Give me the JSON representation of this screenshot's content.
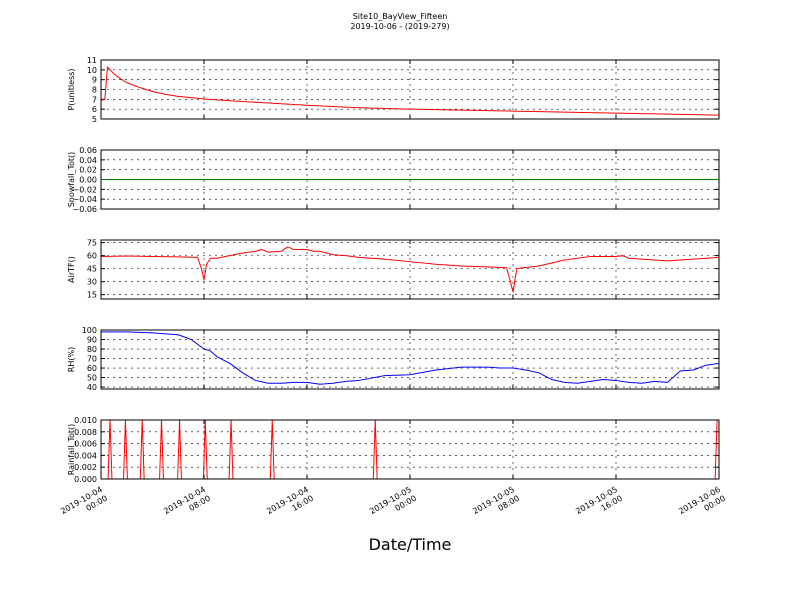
{
  "header": {
    "title": "Site10_BayView_Fifteen",
    "subtitle": "2019-10-06 - (2019-279)"
  },
  "chart_data": {
    "type": "line",
    "xlabel": "Date/Time",
    "x_range": [
      "2019-10-04 00:00",
      "2019-10-06 00:00"
    ],
    "x_ticks": [
      {
        "x_hours": 0,
        "line1": "2019-10-04",
        "line2": "00:00"
      },
      {
        "x_hours": 8,
        "line1": "2019-10-04",
        "line2": "08:00"
      },
      {
        "x_hours": 16,
        "line1": "2019-10-04",
        "line2": "16:00"
      },
      {
        "x_hours": 24,
        "line1": "2019-10-05",
        "line2": "00:00"
      },
      {
        "x_hours": 32,
        "line1": "2019-10-05",
        "line2": "08:00"
      },
      {
        "x_hours": 40,
        "line1": "2019-10-05",
        "line2": "16:00"
      },
      {
        "x_hours": 48,
        "line1": "2019-10-06",
        "line2": "00:00"
      }
    ],
    "grid": true,
    "panels": [
      {
        "ylabel": "P(unitless)",
        "ylim": [
          5,
          11
        ],
        "yticks": [
          "5",
          "6",
          "7",
          "8",
          "9",
          "10",
          "11"
        ],
        "color": "#ff0000",
        "series": {
          "x_hours": [
            0,
            0.3,
            0.5,
            1,
            1.5,
            2,
            3,
            4,
            5,
            6,
            8,
            10,
            12,
            16,
            20,
            24,
            28,
            32,
            36,
            40,
            44,
            48
          ],
          "values": [
            6.9,
            7.0,
            10.3,
            9.6,
            9.1,
            8.7,
            8.2,
            7.8,
            7.5,
            7.3,
            7.05,
            6.85,
            6.7,
            6.4,
            6.15,
            6.0,
            5.9,
            5.8,
            5.7,
            5.6,
            5.5,
            5.4
          ]
        }
      },
      {
        "ylabel": "Snowfall_Tot()",
        "ylim": [
          -0.06,
          0.06
        ],
        "yticks": [
          "−0.06",
          "−0.04",
          "−0.02",
          "0.00",
          "0.02",
          "0.04",
          "0.06"
        ],
        "color": "#008000",
        "series": {
          "x_hours": [
            0,
            48
          ],
          "values": [
            0,
            0
          ]
        }
      },
      {
        "ylabel": "AirTF()",
        "ylim": [
          10,
          78
        ],
        "yticks": [
          "15",
          "30",
          "45",
          "60",
          "75"
        ],
        "color": "#ff0000",
        "series": {
          "x_hours": [
            0,
            2,
            4,
            6,
            7.5,
            7.8,
            8,
            8.2,
            8.5,
            9,
            10,
            11,
            12,
            12.5,
            13,
            14,
            14.5,
            15,
            16,
            16.5,
            17,
            18,
            19,
            20,
            22,
            24,
            26,
            28,
            30,
            31.5,
            31.8,
            32,
            32.3,
            32.8,
            34,
            36,
            38,
            40,
            40.5,
            41,
            42,
            43,
            44,
            46,
            48
          ],
          "values": [
            59,
            59.5,
            59,
            58.5,
            58,
            45,
            32,
            50,
            57,
            57,
            60,
            63,
            65,
            67,
            64,
            65,
            70,
            67,
            67,
            65,
            65,
            61,
            60,
            58,
            56,
            53,
            50,
            48,
            47,
            46,
            30,
            18,
            45,
            46,
            48,
            55,
            59,
            59,
            60,
            57,
            56,
            55,
            54,
            56,
            58
          ]
        }
      },
      {
        "ylabel": "RH(%)",
        "ylim": [
          38,
          100
        ],
        "yticks": [
          "40",
          "50",
          "60",
          "70",
          "80",
          "90",
          "100"
        ],
        "color": "#0000ff",
        "series": {
          "x_hours": [
            0,
            2,
            4,
            6,
            7,
            7.5,
            8,
            8.5,
            9,
            10,
            11,
            12,
            13,
            14,
            15,
            16,
            17,
            18,
            19,
            20,
            22,
            24,
            26,
            28,
            30,
            31,
            32,
            33,
            34,
            35,
            36,
            37,
            38,
            39,
            40,
            41,
            42,
            43,
            44,
            45,
            46,
            47,
            48
          ],
          "values": [
            98,
            98,
            97,
            95,
            90,
            85,
            80,
            78,
            72,
            65,
            55,
            47,
            44,
            44,
            45,
            45,
            43,
            44,
            46,
            47,
            52,
            53,
            58,
            61,
            61,
            60,
            60,
            58,
            55,
            48,
            45,
            44,
            46,
            48,
            47,
            45,
            44,
            46,
            45,
            57,
            58,
            63,
            65
          ]
        }
      },
      {
        "ylabel": "Rainfall_Tot()",
        "ylim": [
          0,
          0.01
        ],
        "yticks": [
          "0.000",
          "0.002",
          "0.004",
          "0.006",
          "0.008",
          "0.010"
        ],
        "color": "#ff0000",
        "series": {
          "x_hours": [
            0,
            0.55,
            0.7,
            0.85,
            1.75,
            1.9,
            2.05,
            3.05,
            3.2,
            3.35,
            4.55,
            4.7,
            4.85,
            5.95,
            6.1,
            6.25,
            7.95,
            8.1,
            8.25,
            9.95,
            10.1,
            10.25,
            13.15,
            13.3,
            13.45,
            21.15,
            21.3,
            21.45,
            47.7,
            47.85,
            48
          ],
          "values": [
            0,
            0,
            0.01,
            0,
            0,
            0.01,
            0,
            0,
            0.01,
            0,
            0,
            0.01,
            0,
            0,
            0.01,
            0,
            0,
            0.01,
            0,
            0,
            0.01,
            0,
            0,
            0.01,
            0,
            0,
            0.01,
            0,
            0,
            0.01,
            0.01
          ]
        }
      }
    ]
  }
}
